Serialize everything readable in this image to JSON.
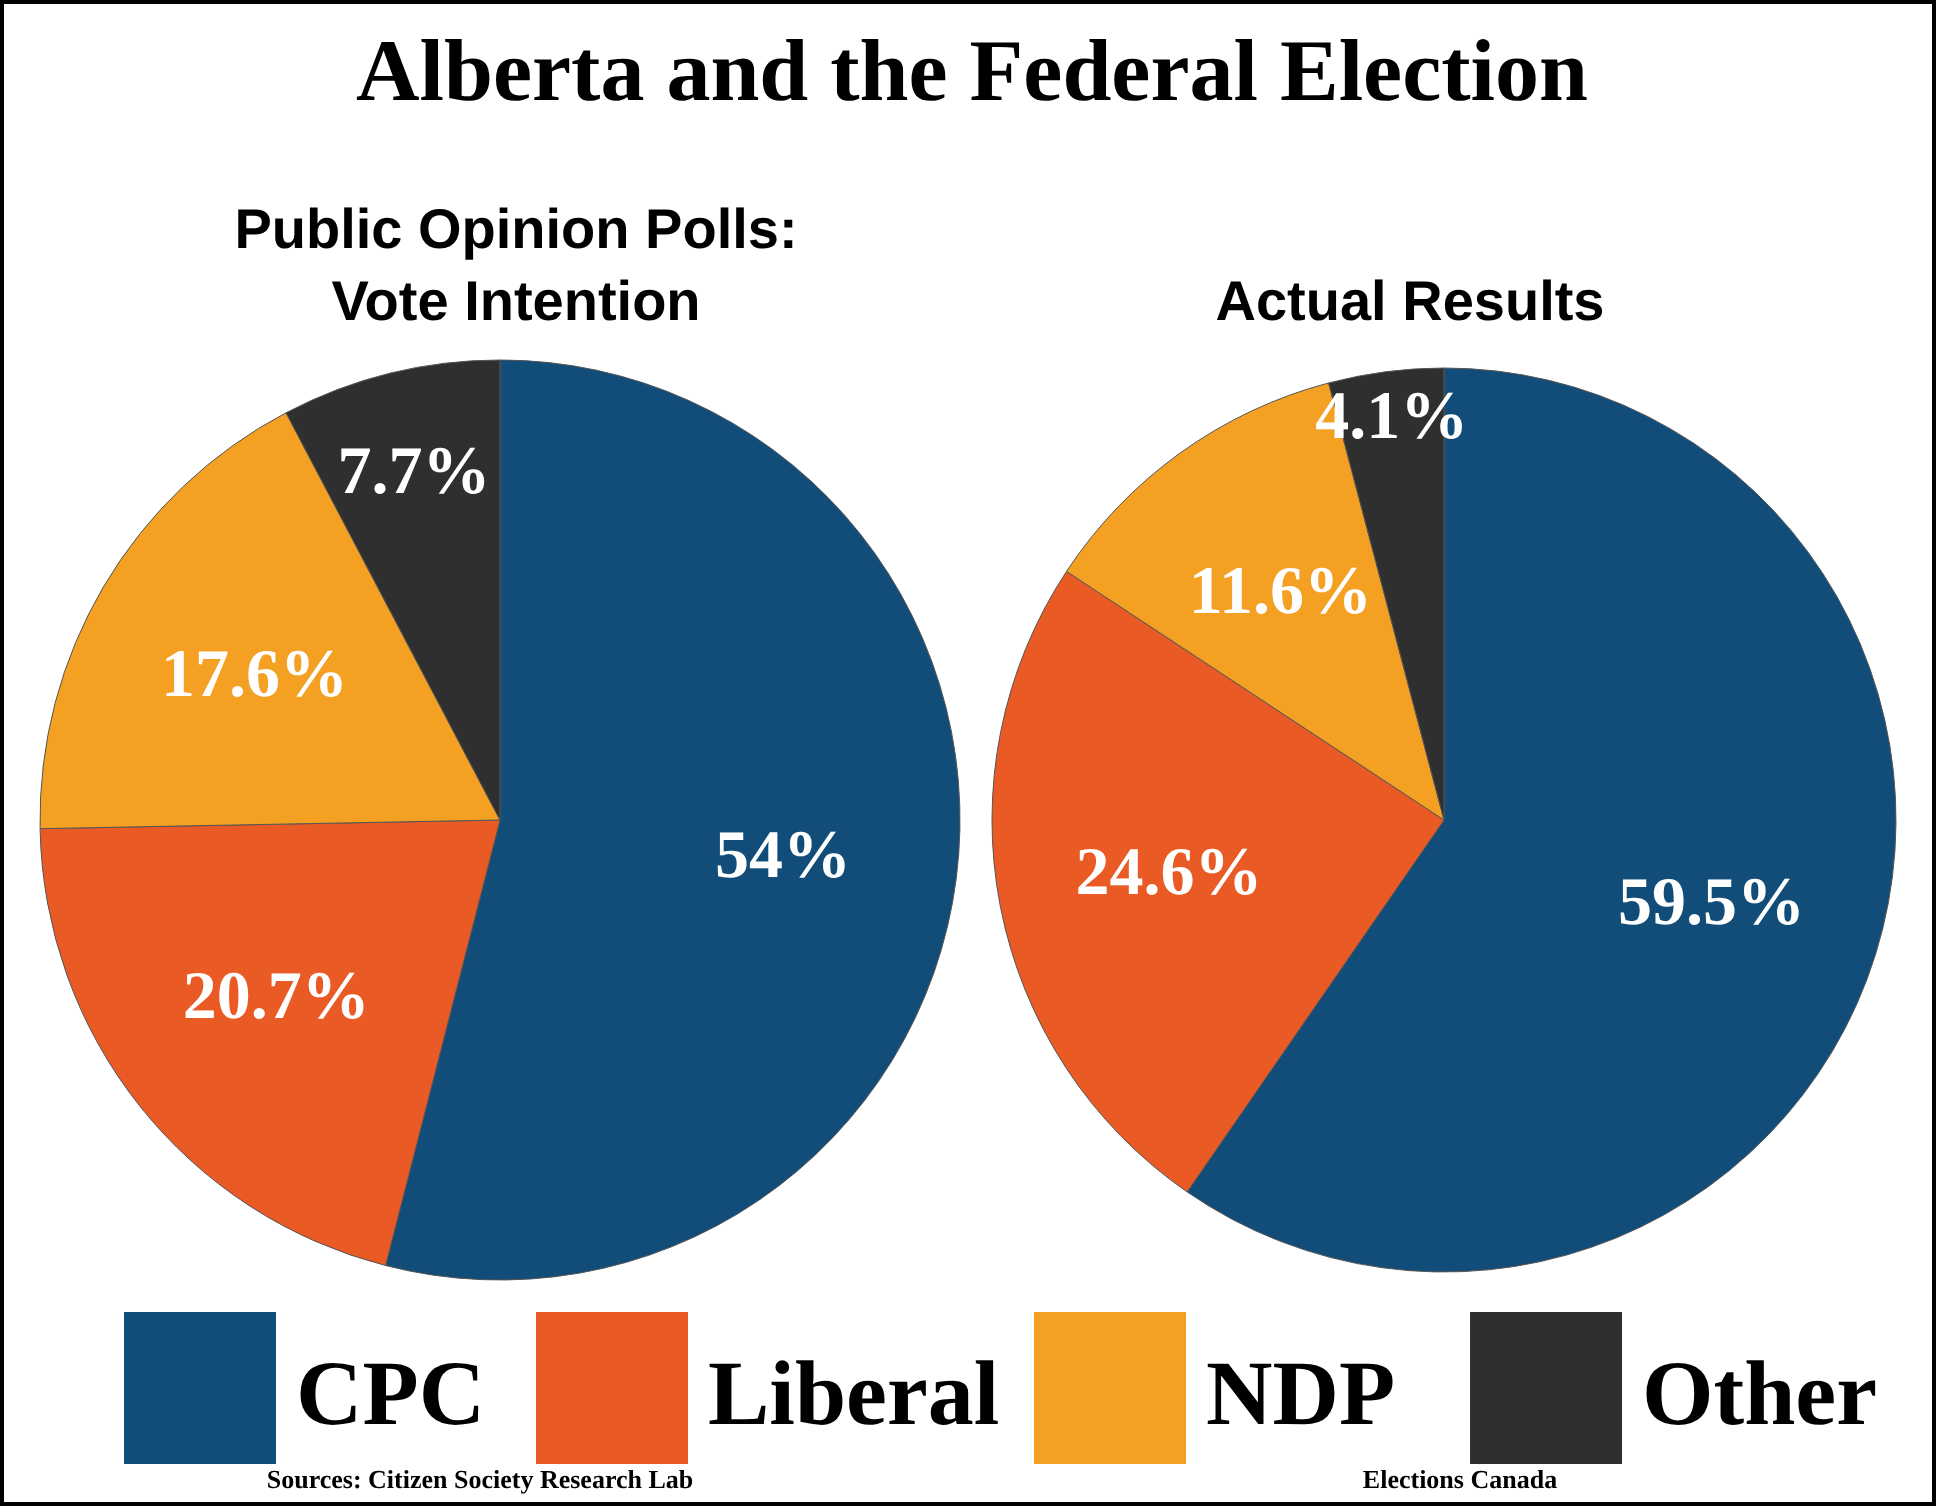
{
  "chart_data": {
    "type": "pie",
    "title": "Alberta and the Federal Election",
    "categories": [
      "CPC",
      "Liberal",
      "NDP",
      "Other"
    ],
    "colors": [
      "#114d78",
      "#ea5a25",
      "#f4a022",
      "#2f2f2f"
    ],
    "legend": "bottom",
    "series": [
      {
        "name": "Public Opinion Polls:\nVote Intention",
        "values": [
          54,
          20.7,
          17.6,
          7.7
        ],
        "value_labels": [
          "54%",
          "20.7%",
          "17.6%",
          "7.7%"
        ]
      },
      {
        "name": "Actual Results",
        "values": [
          59.5,
          24.6,
          11.6,
          4.1
        ],
        "value_labels": [
          "59.5%",
          "24.6%",
          "11.6%",
          "4.1%"
        ]
      }
    ],
    "annotations": [
      "Sources: Citizen Society Research Lab",
      "Elections Canada"
    ]
  }
}
